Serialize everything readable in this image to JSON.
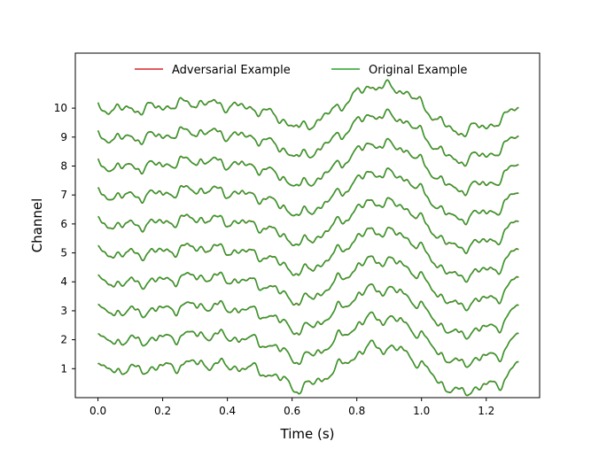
{
  "chart_data": {
    "type": "line",
    "title": "",
    "xlabel": "Time (s)",
    "ylabel": "Channel",
    "xlim": [
      -0.07,
      1.365
    ],
    "ylim": [
      0.0,
      11.9
    ],
    "x_ticks": [
      0.0,
      0.2,
      0.4,
      0.6,
      0.8,
      1.0,
      1.2
    ],
    "x_tick_labels": [
      "0.0",
      "0.2",
      "0.4",
      "0.6",
      "0.8",
      "1.0",
      "1.2"
    ],
    "y_ticks": [
      1,
      2,
      3,
      4,
      5,
      6,
      7,
      8,
      9,
      10
    ],
    "y_tick_labels": [
      "1",
      "2",
      "3",
      "4",
      "5",
      "6",
      "7",
      "8",
      "9",
      "10"
    ],
    "grid": false,
    "legend": {
      "position": "top-center",
      "columns": 2,
      "frame": false,
      "entries": [
        "Adversarial Example",
        "Original Example"
      ]
    },
    "channels": [
      1,
      2,
      3,
      4,
      5,
      6,
      7,
      8,
      9,
      10
    ],
    "x": [
      0.0,
      0.1,
      0.2,
      0.3,
      0.4,
      0.5,
      0.6,
      0.62,
      0.7,
      0.8,
      0.85,
      0.9,
      0.95,
      1.0,
      1.1,
      1.2,
      1.25,
      1.3
    ],
    "base_offset": [
      0.0,
      -0.05,
      0.05,
      0.2,
      0.1,
      -0.05,
      -0.55,
      -0.75,
      -0.3,
      0.5,
      0.8,
      0.7,
      0.6,
      0.1,
      -0.85,
      -0.6,
      -0.45,
      0.2
    ],
    "series": [
      {
        "name": "Adversarial Example",
        "color": "#d62728"
      },
      {
        "name": "Original Example",
        "color": "#2ca02c"
      }
    ]
  }
}
